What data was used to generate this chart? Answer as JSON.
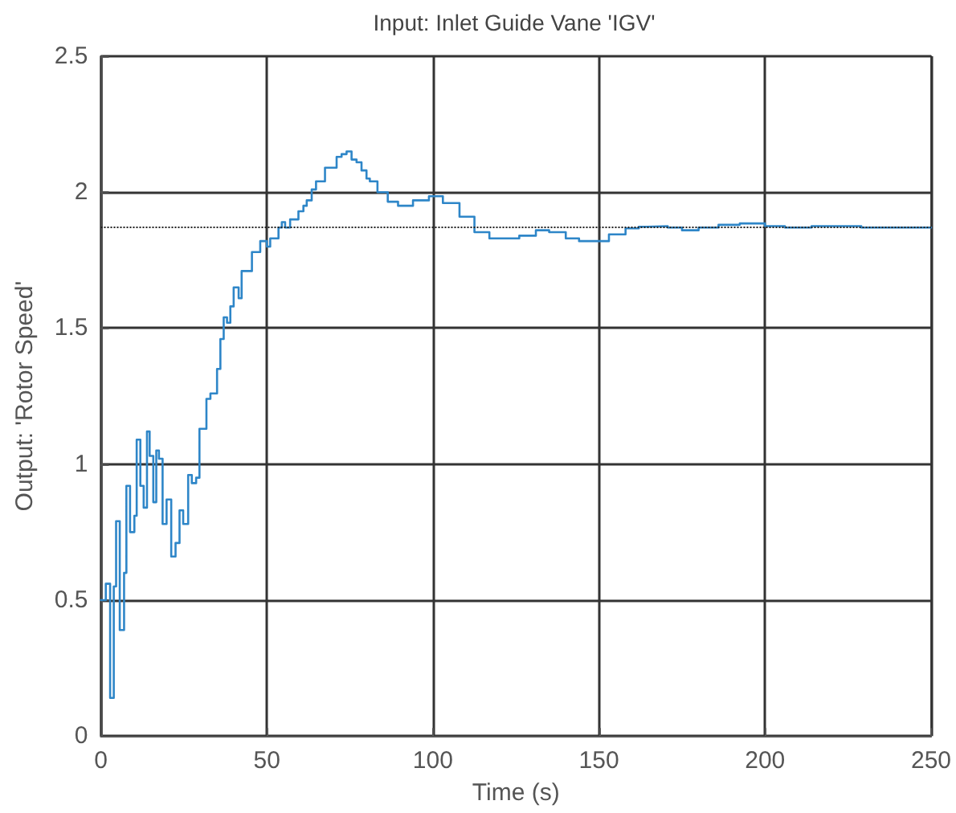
{
  "chart_data": {
    "type": "step",
    "title": "Input: Inlet Guide Vane 'IGV'",
    "xlabel": "Time (s)",
    "ylabel": "Output: 'Rotor Speed'",
    "xlim": [
      0,
      250
    ],
    "xticks": [
      0,
      50,
      100,
      150,
      200,
      250
    ],
    "ylim": [
      0,
      2.5
    ],
    "yticks": [
      0,
      0.5,
      1,
      1.5,
      2,
      2.5
    ],
    "grid": true,
    "marker": "none",
    "line_style": "solid",
    "ref_lines": [
      {
        "axis": "y",
        "value": 1.87,
        "color": "#222222",
        "line_style": "dotted"
      }
    ],
    "series": [
      {
        "color": "#2e86c8",
        "x": [
          0,
          1.5,
          2.8,
          3.9,
          4.6,
          5.7,
          7.0,
          7.7,
          8.8,
          10.1,
          10.8,
          11.9,
          12.9,
          13.9,
          14.7,
          15.8,
          16.7,
          17.5,
          18.6,
          19.8,
          21.2,
          22.5,
          23.7,
          24.8,
          26.3,
          27.4,
          28.7,
          29.7,
          31.8,
          33,
          35,
          36,
          37,
          38,
          39,
          40,
          41.5,
          42.4,
          45.5,
          48,
          50,
          51,
          53.5,
          54.5,
          55.5,
          57,
          59.5,
          61,
          62,
          63.5,
          64.8,
          67.5,
          71,
          72.5,
          74,
          75.5,
          77,
          78.5,
          80,
          81,
          83.3,
          86.4,
          89.5,
          94,
          98.8,
          103,
          108,
          112.5,
          117,
          121.7,
          126,
          131,
          135,
          140,
          144,
          149,
          153,
          158,
          162,
          164.5,
          170.7,
          175,
          180,
          186,
          192.4,
          200,
          206,
          214,
          222,
          229,
          237,
          250
        ],
        "values": [
          0.5,
          0.56,
          0.14,
          0.55,
          0.79,
          0.39,
          0.6,
          0.92,
          0.75,
          0.81,
          1.09,
          0.92,
          0.84,
          1.12,
          1.03,
          0.86,
          1.05,
          1.02,
          0.78,
          0.87,
          0.66,
          0.71,
          0.83,
          0.78,
          0.96,
          0.93,
          0.95,
          1.13,
          1.24,
          1.26,
          1.35,
          1.46,
          1.54,
          1.52,
          1.58,
          1.65,
          1.61,
          1.71,
          1.78,
          1.82,
          1.8,
          1.83,
          1.87,
          1.89,
          1.87,
          1.9,
          1.93,
          1.95,
          1.97,
          2.01,
          2.04,
          2.09,
          2.13,
          2.14,
          2.15,
          2.12,
          2.11,
          2.08,
          2.05,
          2.04,
          2.0,
          1.965,
          1.95,
          1.97,
          1.985,
          1.96,
          1.91,
          1.853,
          1.83,
          1.83,
          1.84,
          1.86,
          1.853,
          1.83,
          1.82,
          1.82,
          1.845,
          1.867,
          1.873,
          1.875,
          1.87,
          1.86,
          1.87,
          1.88,
          1.885,
          1.875,
          1.87,
          1.875,
          1.875,
          1.87,
          1.87,
          1.87
        ]
      }
    ]
  }
}
